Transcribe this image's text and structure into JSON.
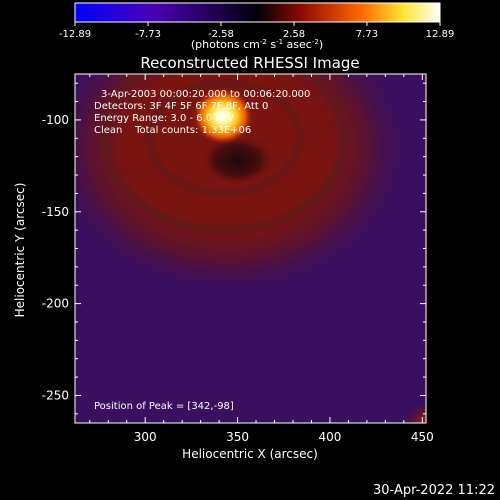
{
  "colorbar": {
    "min": -12.89,
    "max": 12.89,
    "tick_labels": [
      "-12.89",
      "-7.73",
      "-2.58",
      "2.58",
      "7.73",
      "12.89"
    ],
    "tick_values": [
      -12.89,
      -7.73,
      -2.58,
      2.58,
      7.73,
      12.89
    ],
    "unit_prefix": "(photons cm",
    "unit_sup1": "-2",
    "unit_mid1": " s",
    "unit_sup2": "-1",
    "unit_mid2": " asec",
    "unit_sup3": "-2",
    "unit_suffix": ")",
    "colors": [
      "#0000ff",
      "#4b00b4",
      "#00000a",
      "#8c0a00",
      "#ff6400",
      "#ffe632",
      "#ffffff"
    ]
  },
  "chart_data": {
    "type": "heatmap",
    "title": "Reconstructed RHESSI Image",
    "xlabel": "Heliocentric X (arcsec)",
    "ylabel": "Heliocentric Y (arcsec)",
    "xlim": [
      262,
      452
    ],
    "ylim": [
      -265,
      -75
    ],
    "x_ticks": [
      300,
      350,
      400,
      450
    ],
    "y_ticks": [
      -100,
      -150,
      -200,
      -250
    ],
    "peak": [
      342,
      -98
    ],
    "peak_value": 12.89,
    "annotations": {
      "line1": "3-Apr-2003 00:00:20.000 to 00:06:20.000",
      "line2": "Detectors: 3F 4F 5F 6F 7F 8F, Att 0",
      "line3": "Energy Range: 3.0 - 6.0 keV",
      "line4": "Clean    Total counts: 1.33E+06",
      "peak_label": "Position of Peak = [342,-98]"
    }
  },
  "footer": {
    "timestamp": "30-Apr-2022 11:22"
  }
}
